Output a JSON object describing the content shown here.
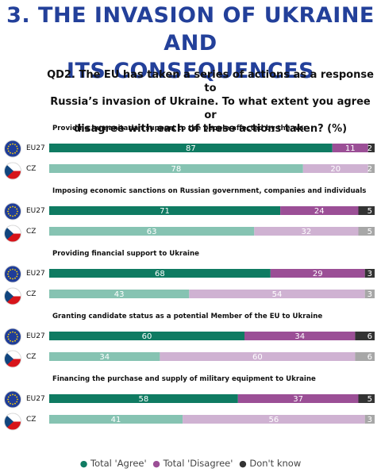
{
  "header": {
    "title_line1": "3. THE INVASION OF UKRAINE AND",
    "title_line2": "ITS CONSEQUENCES"
  },
  "question": {
    "line1": "QD2. The EU has taken a series of actions as a response to",
    "line2": "Russia’s invasion of Ukraine. To what extent you agree or",
    "line3": "disagree with each of these actions taken? (%)"
  },
  "colors": {
    "eu_agree": "#0f7b62",
    "eu_disagree": "#9b4f96",
    "eu_dontknow": "#333333",
    "cz_agree": "#86c3b2",
    "cz_disagree": "#cfb2d2",
    "cz_dontknow": "#a7a7a7",
    "legend_agree": "#0f7b62",
    "legend_disagree": "#9b4f96",
    "legend_dontknow": "#333333"
  },
  "legend": {
    "agree": "Total 'Agree'",
    "disagree": "Total 'Disagree'",
    "dontknow": "Don't know"
  },
  "chart_data": {
    "type": "bar",
    "orientation": "horizontal",
    "stacked": true,
    "series_names": [
      "Total 'Agree'",
      "Total 'Disagree'",
      "Don't know"
    ],
    "xlim": [
      0,
      100
    ],
    "groups": [
      {
        "title": "Providing humanitarian support to the people affected by the war",
        "rows": [
          {
            "label": "EU27",
            "values": [
              87,
              11,
              2
            ]
          },
          {
            "label": "CZ",
            "values": [
              78,
              20,
              2
            ]
          }
        ]
      },
      {
        "title": "Imposing economic sanctions on Russian government, companies and individuals",
        "rows": [
          {
            "label": "EU27",
            "values": [
              71,
              24,
              5
            ]
          },
          {
            "label": "CZ",
            "values": [
              63,
              32,
              5
            ]
          }
        ]
      },
      {
        "title": "Providing financial support to Ukraine",
        "rows": [
          {
            "label": "EU27",
            "values": [
              68,
              29,
              3
            ]
          },
          {
            "label": "CZ",
            "values": [
              43,
              54,
              3
            ]
          }
        ]
      },
      {
        "title": "Granting candidate status as a potential Member of the EU to Ukraine",
        "rows": [
          {
            "label": "EU27",
            "values": [
              60,
              34,
              6
            ]
          },
          {
            "label": "CZ",
            "values": [
              34,
              60,
              6
            ]
          }
        ]
      },
      {
        "title": "Financing the purchase and supply of military equipment to Ukraine",
        "rows": [
          {
            "label": "EU27",
            "values": [
              58,
              37,
              5
            ]
          },
          {
            "label": "CZ",
            "values": [
              41,
              56,
              3
            ]
          }
        ]
      }
    ]
  }
}
